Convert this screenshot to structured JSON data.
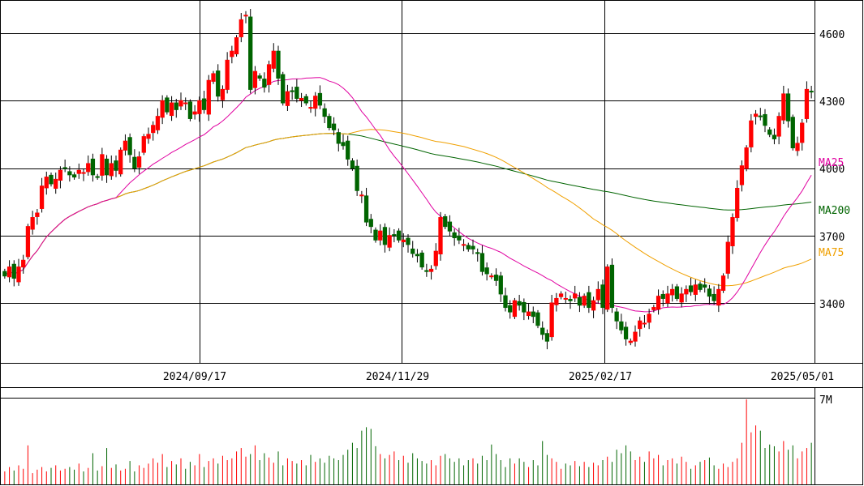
{
  "chart_data": {
    "type": "candlestick",
    "colors": {
      "up_candle": "#ff0000",
      "down_candle": "#006400",
      "ma25": "#e000a0",
      "ma75": "#f0a000",
      "ma200": "#006400",
      "grid": "#000000"
    },
    "price_axis": {
      "ticks": [
        "4600",
        "4300",
        "4000",
        "3700",
        "3400"
      ],
      "range": [
        3200,
        4750
      ]
    },
    "date_axis": {
      "ticks": [
        "2024/09/17",
        "2024/11/29",
        "2025/02/17",
        "2025/05/01"
      ]
    },
    "volume_axis": {
      "ticks": [
        "7M"
      ],
      "range": [
        0,
        7000000
      ]
    },
    "ma_labels": {
      "ma25": "MA25",
      "ma200": "MA200",
      "ma75": "MA75"
    },
    "closes": [
      3520,
      3560,
      3510,
      3560,
      3590,
      3740,
      3780,
      3800,
      3920,
      3960,
      3930,
      3950,
      3990,
      4000,
      3970,
      3960,
      3990,
      3980,
      4020,
      3970,
      3960,
      4060,
      3970,
      4020,
      3990,
      4080,
      4120,
      4060,
      4000,
      4050,
      4140,
      4150,
      4190,
      4230,
      4300,
      4250,
      4290,
      4260,
      4300,
      4290,
      4220,
      4250,
      4300,
      4260,
      4390,
      4420,
      4320,
      4350,
      4480,
      4520,
      4580,
      4660,
      4680,
      4350,
      4430,
      4400,
      4360,
      4460,
      4520,
      4400,
      4290,
      4340,
      4340,
      4310,
      4310,
      4290,
      4270,
      4320,
      4280,
      4230,
      4180,
      4170,
      4110,
      4100,
      4040,
      4000,
      3900,
      3880,
      3760,
      3740,
      3680,
      3720,
      3660,
      3700,
      3700,
      3680,
      3680,
      3660,
      3620,
      3610,
      3560,
      3540,
      3550,
      3630,
      3780,
      3740,
      3720,
      3690,
      3680,
      3660,
      3640,
      3640,
      3620,
      3540,
      3530,
      3520,
      3500,
      3440,
      3380,
      3360,
      3410,
      3390,
      3360,
      3360,
      3340,
      3300,
      3260,
      3230,
      3400,
      3420,
      3440,
      3420,
      3410,
      3440,
      3390,
      3430,
      3380,
      3410,
      3460,
      3380,
      3560,
      3380,
      3320,
      3280,
      3240,
      3230,
      3270,
      3320,
      3310,
      3350,
      3380,
      3430,
      3420,
      3440,
      3460,
      3420,
      3440,
      3460,
      3450,
      3480,
      3460,
      3470,
      3430,
      3410,
      3460,
      3520,
      3670,
      3780,
      3910,
      4010,
      4090,
      4210,
      4240,
      4230,
      4190,
      4150,
      4130,
      4230,
      4330,
      4210,
      4090,
      4110,
      4200,
      4350,
      4340
    ],
    "volumes": [
      0.15,
      0.2,
      0.16,
      0.22,
      0.18,
      0.45,
      0.13,
      0.17,
      0.2,
      0.15,
      0.19,
      0.22,
      0.16,
      0.18,
      0.2,
      0.17,
      0.24,
      0.15,
      0.19,
      0.36,
      0.16,
      0.21,
      0.42,
      0.19,
      0.23,
      0.16,
      0.18,
      0.27,
      0.15,
      0.22,
      0.19,
      0.24,
      0.3,
      0.25,
      0.35,
      0.2,
      0.27,
      0.23,
      0.3,
      0.18,
      0.26,
      0.22,
      0.35,
      0.2,
      0.27,
      0.3,
      0.24,
      0.33,
      0.28,
      0.3,
      0.38,
      0.42,
      0.32,
      0.35,
      0.45,
      0.28,
      0.36,
      0.31,
      0.25,
      0.38,
      0.22,
      0.3,
      0.27,
      0.24,
      0.28,
      0.22,
      0.34,
      0.26,
      0.3,
      0.25,
      0.33,
      0.3,
      0.28,
      0.34,
      0.4,
      0.48,
      0.42,
      0.62,
      0.66,
      0.64,
      0.44,
      0.35,
      0.3,
      0.34,
      0.38,
      0.28,
      0.33,
      0.25,
      0.36,
      0.3,
      0.27,
      0.24,
      0.28,
      0.22,
      0.33,
      0.35,
      0.3,
      0.26,
      0.3,
      0.22,
      0.28,
      0.3,
      0.24,
      0.33,
      0.28,
      0.46,
      0.35,
      0.28,
      0.2,
      0.3,
      0.24,
      0.3,
      0.26,
      0.2,
      0.28,
      0.22,
      0.5,
      0.34,
      0.3,
      0.26,
      0.18,
      0.24,
      0.22,
      0.27,
      0.21,
      0.26,
      0.2,
      0.25,
      0.22,
      0.28,
      0.32,
      0.26,
      0.4,
      0.36,
      0.45,
      0.38,
      0.28,
      0.32,
      0.26,
      0.38,
      0.3,
      0.34,
      0.22,
      0.28,
      0.3,
      0.24,
      0.32,
      0.26,
      0.18,
      0.22,
      0.26,
      0.28,
      0.31,
      0.22,
      0.18,
      0.24,
      0.2,
      0.26,
      0.3,
      0.48,
      0.98,
      0.6,
      0.68,
      0.62,
      0.42,
      0.46,
      0.44,
      0.38,
      0.5,
      0.4,
      0.45,
      0.3,
      0.38,
      0.42,
      0.48,
      0.44,
      0.36,
      0.3,
      0.2
    ]
  }
}
